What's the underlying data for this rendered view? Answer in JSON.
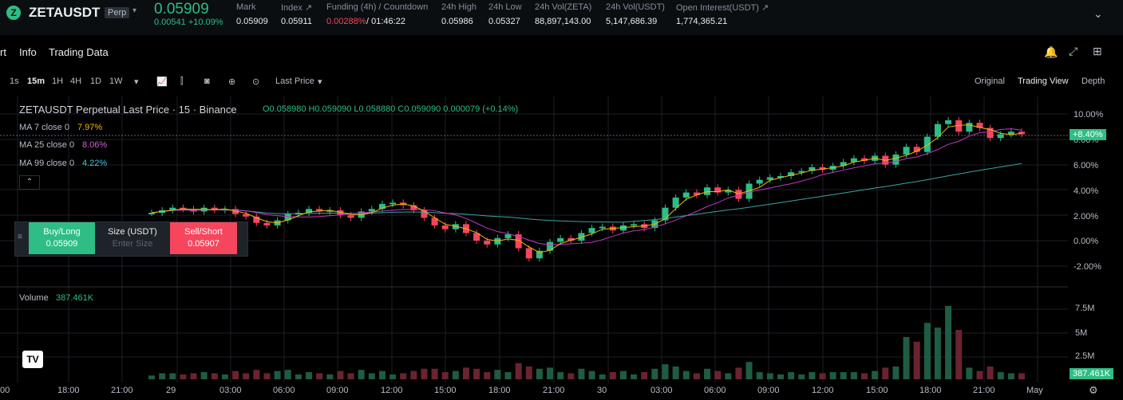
{
  "ticker": {
    "symbol": "ZETAUSDT",
    "badge": "Perp",
    "last": "0.05909",
    "change": "0.00541 +10.09%"
  },
  "stats": [
    {
      "label": "Mark",
      "value": "0.05909"
    },
    {
      "label": "Index ↗",
      "value": "0.05911"
    },
    {
      "label": "Funding (4h) / Countdown",
      "value": "0.00288%",
      "value2": " / 01:46:22"
    },
    {
      "label": "24h High",
      "value": "0.05986"
    },
    {
      "label": "24h Low",
      "value": "0.05327"
    },
    {
      "label": "24h Vol(ZETA)",
      "value": "88,897,143.00"
    },
    {
      "label": "24h Vol(USDT)",
      "value": "5,147,686.39"
    },
    {
      "label": "Open Interest(USDT) ↗",
      "value": "1,774,365.21"
    }
  ],
  "nav": {
    "tab1": "rt",
    "tab2": "Info",
    "tab3": "Trading Data"
  },
  "toolbar": {
    "intervals": [
      "1s",
      "15m",
      "1H",
      "4H",
      "1D",
      "1W"
    ],
    "price_type": "Last Price",
    "views": [
      "Original",
      "Trading View",
      "Depth"
    ]
  },
  "legend": {
    "title": "ZETAUSDT Perpetual Last Price · 15 · Binance",
    "ohlc": "O0.058980 H0.059090 L0.058880 C0.059090 0.000079 (+0.14%)",
    "ma7": "MA 7 close 0",
    "ma7v": "7.97%",
    "ma25": "MA 25 close 0",
    "ma25v": "8.06%",
    "ma99": "MA 99 close 0",
    "ma99v": "4.22%"
  },
  "trade": {
    "buy": "Buy/Long",
    "buy_price": "0.05909",
    "size": "Size (USDT)",
    "size_ph": "Enter Size",
    "sell": "Sell/Short",
    "sell_price": "0.05907"
  },
  "volume": {
    "label": "Volume",
    "value": "387.461K",
    "badge": "387.461K"
  },
  "price_badge": "+8.40%",
  "chart_data": {
    "type": "candlestick",
    "y_ticks": [
      "10.00%",
      "8.00%",
      "6.00%",
      "4.00%",
      "2.00%",
      "0.00%",
      "-2.00%"
    ],
    "vol_ticks": [
      "7.5M",
      "5M",
      "2.5M"
    ],
    "x_ticks": [
      "00",
      "18:00",
      "21:00",
      "29",
      "03:00",
      "06:00",
      "09:00",
      "12:00",
      "15:00",
      "18:00",
      "21:00",
      "30",
      "03:00",
      "06:00",
      "09:00",
      "12:00",
      "15:00",
      "18:00",
      "21:00",
      "May"
    ],
    "colors": {
      "up": "#2ebd85",
      "down": "#f6465d",
      "ma7": "#f0b90b",
      "ma25": "#c039c0",
      "ma99": "#3ca3a3"
    }
  }
}
